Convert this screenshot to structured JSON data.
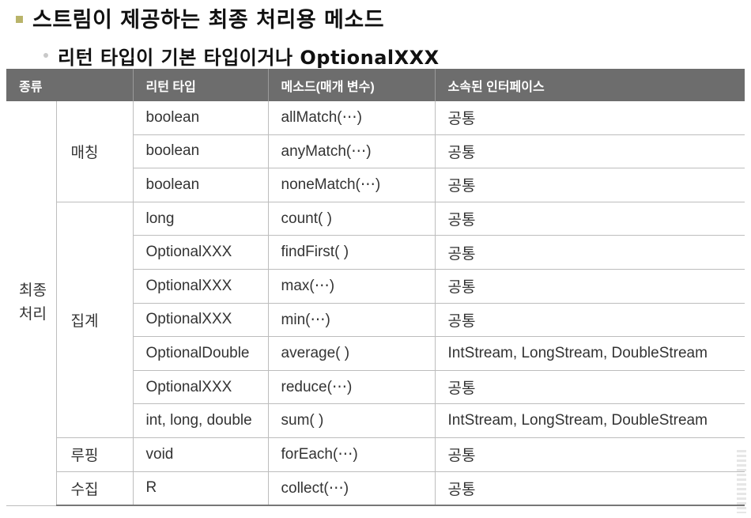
{
  "title": "스트림이 제공하는 최종 처리용 메소드",
  "subtitle": "리턴 타입이 기본 타입이거나 OptionalXXX",
  "table": {
    "headers": [
      "종류",
      "리턴 타입",
      "메소드(매개 변수)",
      "소속된 인터페이스"
    ],
    "category": [
      "최종",
      "처리"
    ],
    "groups": [
      {
        "label": "매칭",
        "rows": [
          {
            "ret": "boolean",
            "method": "allMatch(⋯)",
            "iface": "공통"
          },
          {
            "ret": "boolean",
            "method": "anyMatch(⋯)",
            "iface": "공통"
          },
          {
            "ret": "boolean",
            "method": "noneMatch(⋯)",
            "iface": "공통"
          }
        ]
      },
      {
        "label": "집계",
        "rows": [
          {
            "ret": "long",
            "method": "count( )",
            "iface": "공통"
          },
          {
            "ret": "OptionalXXX",
            "method": "findFirst( )",
            "iface": "공통"
          },
          {
            "ret": "OptionalXXX",
            "method": "max(⋯)",
            "iface": "공통"
          },
          {
            "ret": "OptionalXXX",
            "method": "min(⋯)",
            "iface": "공통"
          },
          {
            "ret": "OptionalDouble",
            "method": "average( )",
            "iface": "IntStream, LongStream, DoubleStream"
          },
          {
            "ret": "OptionalXXX",
            "method": "reduce(⋯)",
            "iface": "공통"
          },
          {
            "ret": "int, long, double",
            "method": "sum( )",
            "iface": "IntStream, LongStream, DoubleStream"
          }
        ]
      },
      {
        "label": "루핑",
        "rows": [
          {
            "ret": "void",
            "method": "forEach(⋯)",
            "iface": "공통"
          }
        ]
      },
      {
        "label": "수집",
        "rows": [
          {
            "ret": "R",
            "method": "collect(⋯)",
            "iface": "공통"
          }
        ]
      }
    ]
  }
}
